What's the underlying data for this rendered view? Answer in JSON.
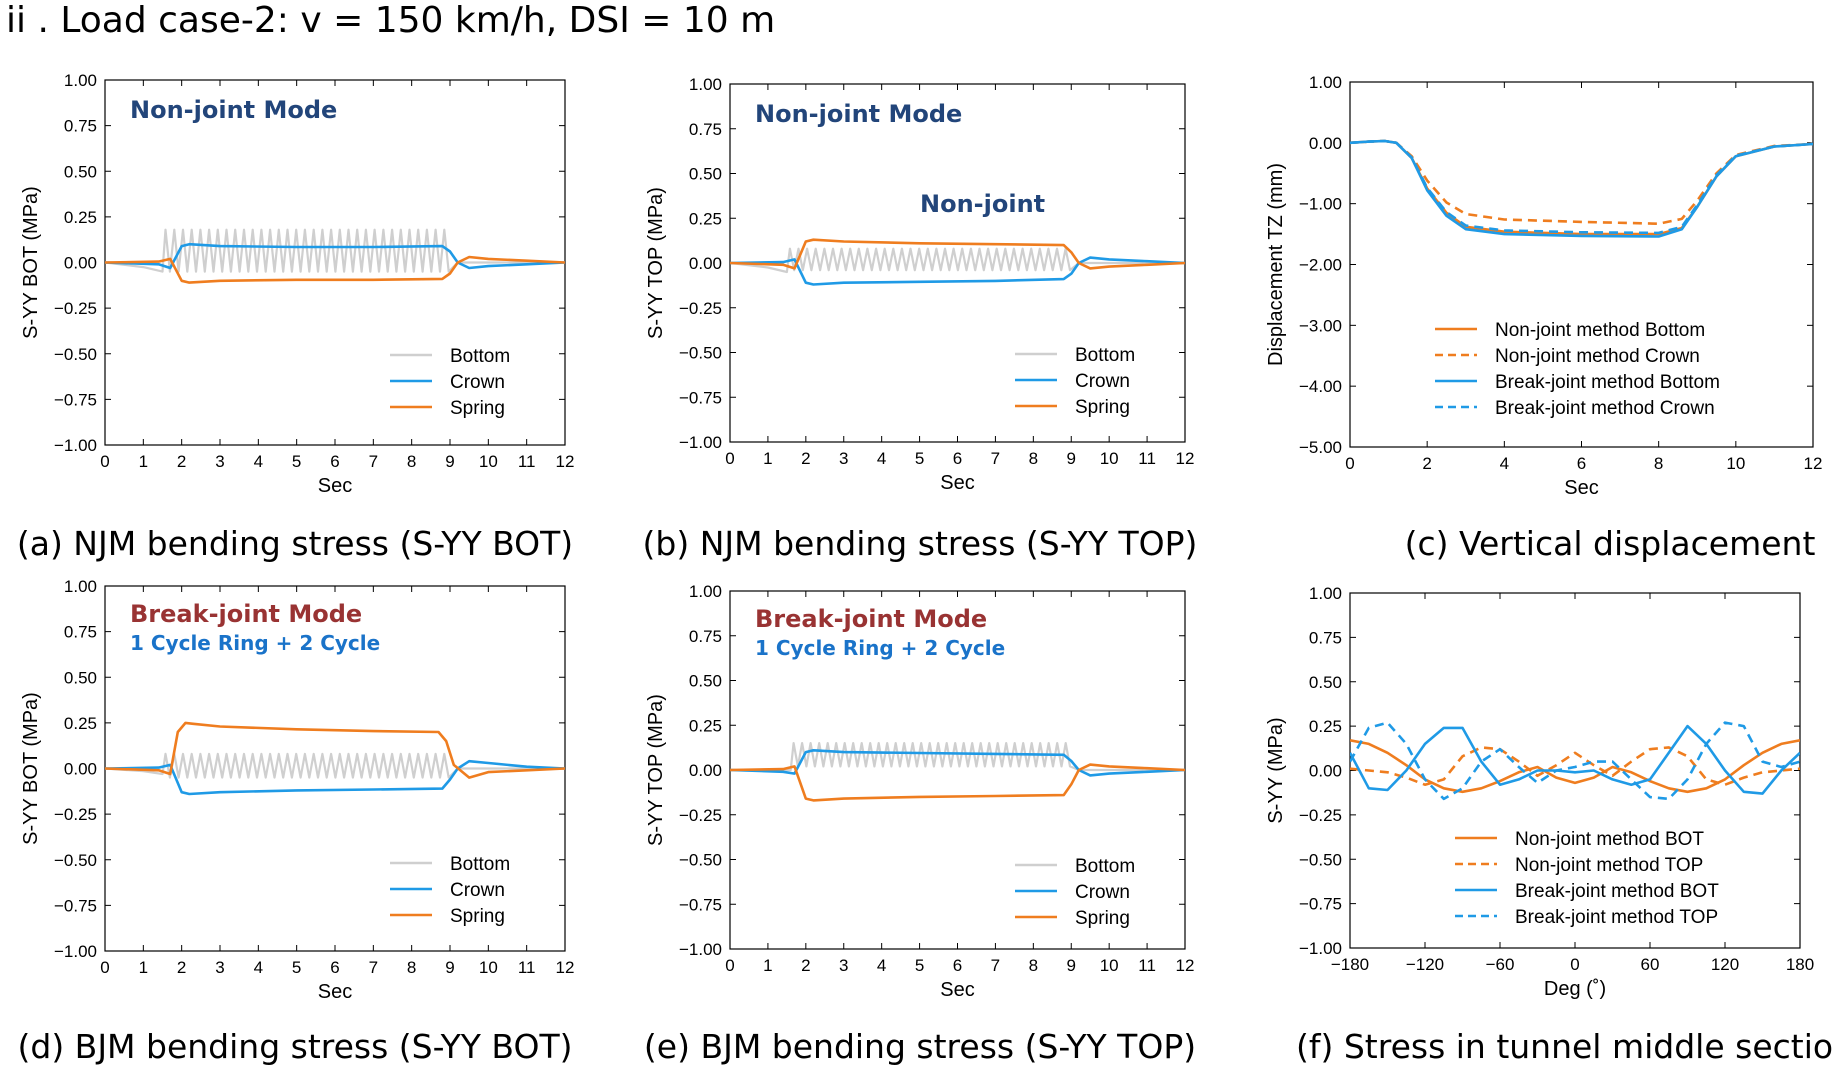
{
  "page": {
    "title": "ii . Load case-2: v = 150 km/h, DSI = 10 m"
  },
  "colors": {
    "bottom": "#cfcfcf",
    "crown": "#1f9ae6",
    "spring": "#ef7d1f",
    "non_joint": "#ef7d1f",
    "break_joint": "#1f9ae6",
    "anno_navy": "#22457a",
    "anno_red": "#993333",
    "anno_blue": "#1a73c9"
  },
  "chart_data": [
    {
      "id": "a",
      "type": "line",
      "caption": "(a) NJM bending stress (S-YY BOT)",
      "xlabel": "Sec",
      "ylabel": "S-YY  BOT (MPa)",
      "xlim": [
        0,
        12
      ],
      "ylim": [
        -1.0,
        1.0
      ],
      "xticks": [
        "0",
        "1",
        "2",
        "3",
        "4",
        "5",
        "6",
        "7",
        "8",
        "9",
        "10",
        "11",
        "12"
      ],
      "yticks": [
        "1.00",
        "0.75",
        "0.50",
        "0.25",
        "0.00",
        "−0.25",
        "−0.50",
        "−0.75",
        "−1.00"
      ],
      "annotations": [
        {
          "text": "Non-joint Mode",
          "color": "anno_navy"
        }
      ],
      "legend": {
        "position": "lower-right",
        "entries": [
          "Bottom",
          "Crown",
          "Spring"
        ]
      },
      "series": [
        {
          "name": "Bottom",
          "color": "bottom",
          "style": "solid",
          "kind": "oscillating",
          "start": 1.5,
          "end": 9.0,
          "cycles": 33,
          "high": 0.18,
          "low": -0.05,
          "pre_dip": -0.05,
          "post": 0.0
        },
        {
          "name": "Crown",
          "color": "crown",
          "style": "solid",
          "x": [
            0,
            1.4,
            1.7,
            2.0,
            2.2,
            3,
            5,
            7,
            8.8,
            9.0,
            9.2,
            9.5,
            10,
            11,
            12
          ],
          "y": [
            0,
            -0.01,
            -0.03,
            0.09,
            0.1,
            0.09,
            0.085,
            0.085,
            0.09,
            0.06,
            0.0,
            -0.03,
            -0.02,
            -0.01,
            0
          ]
        },
        {
          "name": "Spring",
          "color": "spring",
          "style": "solid",
          "x": [
            0,
            1.4,
            1.7,
            2.0,
            2.2,
            3,
            5,
            7,
            8.8,
            9.0,
            9.2,
            9.5,
            10,
            11,
            12
          ],
          "y": [
            0,
            0.005,
            0.02,
            -0.1,
            -0.11,
            -0.1,
            -0.095,
            -0.095,
            -0.09,
            -0.06,
            0.0,
            0.03,
            0.02,
            0.01,
            0
          ]
        }
      ]
    },
    {
      "id": "b",
      "type": "line",
      "caption": "(b) NJM bending stress (S-YY TOP)",
      "xlabel": "Sec",
      "ylabel": "S-YY  TOP (MPa)",
      "xlim": [
        0,
        12
      ],
      "ylim": [
        -1.0,
        1.0
      ],
      "xticks": [
        "0",
        "1",
        "2",
        "3",
        "4",
        "5",
        "6",
        "7",
        "8",
        "9",
        "10",
        "11",
        "12"
      ],
      "yticks": [
        "1.00",
        "0.75",
        "0.50",
        "0.25",
        "0.00",
        "−0.25",
        "−0.50",
        "−0.75",
        "−1.00"
      ],
      "annotations": [
        {
          "text": "Non-joint Mode",
          "color": "anno_navy"
        },
        {
          "text": "Non-joint",
          "color": "anno_navy"
        }
      ],
      "legend": {
        "position": "lower-right",
        "entries": [
          "Bottom",
          "Crown",
          "Spring"
        ]
      },
      "series": [
        {
          "name": "Bottom",
          "color": "bottom",
          "style": "solid",
          "kind": "oscillating",
          "start": 1.5,
          "end": 9.0,
          "cycles": 33,
          "high": 0.08,
          "low": -0.04,
          "pre_dip": -0.05,
          "post": 0.0
        },
        {
          "name": "Crown",
          "color": "crown",
          "style": "solid",
          "x": [
            0,
            1.4,
            1.7,
            2.0,
            2.2,
            3,
            5,
            7,
            8.8,
            9.0,
            9.2,
            9.5,
            10,
            11,
            12
          ],
          "y": [
            0,
            0.005,
            0.02,
            -0.11,
            -0.12,
            -0.11,
            -0.105,
            -0.1,
            -0.09,
            -0.06,
            0.0,
            0.03,
            0.02,
            0.01,
            0
          ]
        },
        {
          "name": "Spring",
          "color": "spring",
          "style": "solid",
          "x": [
            0,
            1.4,
            1.7,
            2.0,
            2.2,
            3,
            5,
            7,
            8.8,
            9.0,
            9.2,
            9.5,
            10,
            11,
            12
          ],
          "y": [
            0,
            -0.01,
            -0.03,
            0.12,
            0.13,
            0.12,
            0.11,
            0.105,
            0.1,
            0.06,
            0.0,
            -0.03,
            -0.02,
            -0.01,
            0
          ]
        }
      ]
    },
    {
      "id": "c",
      "type": "line",
      "caption": "(c) Vertical displacement",
      "xlabel": "Sec",
      "ylabel": "Displacement  TZ (mm)",
      "xlim": [
        0,
        12
      ],
      "ylim": [
        -5.0,
        1.0
      ],
      "xticks": [
        "0",
        "2",
        "4",
        "6",
        "8",
        "10",
        "12"
      ],
      "yticks": [
        "1.00",
        "0.00",
        "−1.00",
        "−2.00",
        "−3.00",
        "−4.00",
        "−5.00"
      ],
      "legend": {
        "position": "lower-right",
        "entries": [
          "Non-joint method  Bottom",
          "Non-joint method  Crown",
          "Break-joint method  Bottom",
          "Break-joint method  Crown"
        ]
      },
      "series": [
        {
          "name": "Non-joint method  Bottom",
          "color": "non_joint",
          "style": "solid",
          "x": [
            0,
            0.5,
            0.9,
            1.2,
            1.6,
            2.0,
            2.5,
            3,
            4,
            6,
            8,
            8.6,
            9,
            9.5,
            10,
            11,
            12
          ],
          "y": [
            0,
            0.02,
            0.03,
            0,
            -0.25,
            -0.75,
            -1.15,
            -1.38,
            -1.46,
            -1.5,
            -1.5,
            -1.4,
            -1.05,
            -0.55,
            -0.22,
            -0.06,
            -0.02
          ]
        },
        {
          "name": "Non-joint method  Crown",
          "color": "non_joint",
          "style": "dashed",
          "x": [
            0,
            0.5,
            0.9,
            1.2,
            1.6,
            2.0,
            2.5,
            3,
            4,
            6,
            8,
            8.6,
            9,
            9.5,
            10,
            11,
            12
          ],
          "y": [
            0,
            0.02,
            0.03,
            0,
            -0.22,
            -0.62,
            -0.98,
            -1.17,
            -1.26,
            -1.3,
            -1.33,
            -1.25,
            -0.95,
            -0.5,
            -0.2,
            -0.05,
            -0.02
          ]
        },
        {
          "name": "Break-joint method  Bottom",
          "color": "break_joint",
          "style": "solid",
          "x": [
            0,
            0.5,
            0.9,
            1.2,
            1.6,
            2.0,
            2.5,
            3,
            4,
            6,
            8,
            8.6,
            9,
            9.5,
            10,
            11,
            12
          ],
          "y": [
            0,
            0.02,
            0.03,
            0,
            -0.25,
            -0.78,
            -1.2,
            -1.42,
            -1.5,
            -1.53,
            -1.54,
            -1.42,
            -1.05,
            -0.55,
            -0.22,
            -0.06,
            -0.02
          ]
        },
        {
          "name": "Break-joint method  Crown",
          "color": "break_joint",
          "style": "dashed",
          "x": [
            0,
            0.5,
            0.9,
            1.2,
            1.6,
            2.0,
            2.5,
            3,
            4,
            6,
            8,
            8.6,
            9,
            9.5,
            10,
            11,
            12
          ],
          "y": [
            0,
            0.02,
            0.03,
            0,
            -0.24,
            -0.74,
            -1.14,
            -1.36,
            -1.44,
            -1.47,
            -1.48,
            -1.38,
            -1.02,
            -0.53,
            -0.21,
            -0.06,
            -0.02
          ]
        }
      ]
    },
    {
      "id": "d",
      "type": "line",
      "caption": "(d) BJM bending stress (S-YY BOT)",
      "xlabel": "Sec",
      "ylabel": "S-YY  BOT (MPa)",
      "xlim": [
        0,
        12
      ],
      "ylim": [
        -1.0,
        1.0
      ],
      "xticks": [
        "0",
        "1",
        "2",
        "3",
        "4",
        "5",
        "6",
        "7",
        "8",
        "9",
        "10",
        "11",
        "12"
      ],
      "yticks": [
        "1.00",
        "0.75",
        "0.50",
        "0.25",
        "0.00",
        "−0.25",
        "−0.50",
        "−0.75",
        "−1.00"
      ],
      "annotations": [
        {
          "text": "Break-joint Mode",
          "color": "anno_red"
        },
        {
          "text": "1 Cycle Ring + 2 Cycle",
          "color": "anno_blue"
        }
      ],
      "legend": {
        "position": "lower-right",
        "entries": [
          "Bottom",
          "Crown",
          "Spring"
        ]
      },
      "series": [
        {
          "name": "Bottom",
          "color": "bottom",
          "style": "solid",
          "kind": "oscillating",
          "start": 1.5,
          "end": 9.0,
          "cycles": 33,
          "high": 0.08,
          "low": -0.05,
          "pre_dip": -0.03,
          "post": 0.0
        },
        {
          "name": "Crown",
          "color": "crown",
          "style": "solid",
          "x": [
            0,
            1.4,
            1.7,
            2.0,
            2.2,
            3,
            5,
            7,
            8.8,
            9.0,
            9.2,
            9.5,
            10,
            11,
            12
          ],
          "y": [
            0,
            0.005,
            0.02,
            -0.13,
            -0.14,
            -0.13,
            -0.12,
            -0.115,
            -0.11,
            -0.06,
            0.0,
            0.04,
            0.03,
            0.01,
            0
          ]
        },
        {
          "name": "Spring",
          "color": "spring",
          "style": "solid",
          "x": [
            0,
            1.4,
            1.7,
            1.9,
            2.1,
            2.3,
            3,
            5,
            7,
            8.7,
            8.9,
            9.1,
            9.5,
            10,
            11,
            12
          ],
          "y": [
            0,
            -0.01,
            -0.03,
            0.2,
            0.25,
            0.245,
            0.23,
            0.215,
            0.205,
            0.2,
            0.15,
            0.02,
            -0.05,
            -0.02,
            -0.01,
            0
          ]
        }
      ]
    },
    {
      "id": "e",
      "type": "line",
      "caption": "(e) BJM bending stress (S-YY TOP)",
      "xlabel": "Sec",
      "ylabel": "S-YY  TOP (MPa)",
      "xlim": [
        0,
        12
      ],
      "ylim": [
        -1.0,
        1.0
      ],
      "xticks": [
        "0",
        "1",
        "2",
        "3",
        "4",
        "5",
        "6",
        "7",
        "8",
        "9",
        "10",
        "11",
        "12"
      ],
      "yticks": [
        "1.00",
        "0.75",
        "0.50",
        "0.25",
        "0.00",
        "−0.25",
        "−0.50",
        "−0.75",
        "−1.00"
      ],
      "annotations": [
        {
          "text": "Break-joint Mode",
          "color": "anno_red"
        },
        {
          "text": "1 Cycle Ring + 2 Cycle",
          "color": "anno_blue"
        }
      ],
      "legend": {
        "position": "lower-right",
        "entries": [
          "Bottom",
          "Crown",
          "Spring"
        ]
      },
      "series": [
        {
          "name": "Bottom",
          "color": "bottom",
          "style": "solid",
          "kind": "oscillating",
          "start": 1.6,
          "end": 9.0,
          "cycles": 33,
          "high": 0.15,
          "low": 0.02,
          "pre_dip": 0.0,
          "post": 0.0
        },
        {
          "name": "Crown",
          "color": "crown",
          "style": "solid",
          "x": [
            0,
            1.4,
            1.7,
            2.0,
            2.2,
            3,
            5,
            7,
            8.8,
            9.0,
            9.2,
            9.5,
            10,
            11,
            12
          ],
          "y": [
            0,
            -0.01,
            -0.02,
            0.1,
            0.11,
            0.1,
            0.095,
            0.09,
            0.085,
            0.05,
            0.0,
            -0.03,
            -0.02,
            -0.01,
            0
          ]
        },
        {
          "name": "Spring",
          "color": "spring",
          "style": "solid",
          "x": [
            0,
            1.4,
            1.7,
            2.0,
            2.2,
            3,
            5,
            7,
            8.8,
            9.0,
            9.2,
            9.5,
            10,
            11,
            12
          ],
          "y": [
            0,
            0.005,
            0.02,
            -0.16,
            -0.17,
            -0.16,
            -0.15,
            -0.145,
            -0.14,
            -0.08,
            0.0,
            0.03,
            0.02,
            0.01,
            0
          ]
        }
      ]
    },
    {
      "id": "f",
      "type": "line",
      "caption": "(f) Stress in tunnel middle section",
      "xlabel": "Deg (˚)",
      "ylabel": "S-YY (MPa)",
      "xlim": [
        -180,
        180
      ],
      "ylim": [
        -1.0,
        1.0
      ],
      "xticks": [
        "−180",
        "−120",
        "−60",
        "0",
        "60",
        "120",
        "180"
      ],
      "yticks": [
        "1.00",
        "0.75",
        "0.50",
        "0.25",
        "0.00",
        "−0.25",
        "−0.50",
        "−0.75",
        "−1.00"
      ],
      "legend": {
        "position": "lower-right",
        "entries": [
          "Non-joint method       BOT",
          "Non-joint method       TOP",
          "Break-joint method  BOT",
          "Break-joint method  TOP"
        ]
      },
      "series": [
        {
          "name": "Non-joint method BOT",
          "color": "non_joint",
          "style": "solid",
          "x": [
            -180,
            -165,
            -150,
            -135,
            -120,
            -105,
            -90,
            -75,
            -60,
            -45,
            -30,
            -15,
            0,
            15,
            30,
            45,
            60,
            75,
            90,
            105,
            120,
            135,
            150,
            165,
            180
          ],
          "y": [
            0.17,
            0.15,
            0.1,
            0.03,
            -0.05,
            -0.1,
            -0.12,
            -0.1,
            -0.06,
            -0.01,
            0.02,
            -0.04,
            -0.07,
            -0.04,
            0.02,
            -0.01,
            -0.06,
            -0.1,
            -0.12,
            -0.1,
            -0.05,
            0.03,
            0.1,
            0.15,
            0.17
          ]
        },
        {
          "name": "Non-joint method TOP",
          "color": "non_joint",
          "style": "dashed",
          "x": [
            -180,
            -165,
            -150,
            -135,
            -120,
            -105,
            -90,
            -75,
            -60,
            -45,
            -30,
            -15,
            0,
            15,
            30,
            45,
            60,
            75,
            90,
            105,
            120,
            135,
            150,
            165,
            180
          ],
          "y": [
            0.01,
            0.0,
            -0.01,
            -0.04,
            -0.08,
            -0.05,
            0.08,
            0.13,
            0.12,
            0.05,
            -0.03,
            0.03,
            0.1,
            0.03,
            -0.03,
            0.05,
            0.12,
            0.13,
            0.08,
            -0.05,
            -0.08,
            -0.04,
            -0.01,
            0.0,
            0.01
          ]
        },
        {
          "name": "Break-joint method BOT",
          "color": "break_joint",
          "style": "solid",
          "x": [
            -180,
            -165,
            -150,
            -135,
            -120,
            -105,
            -90,
            -75,
            -60,
            -45,
            -30,
            -15,
            0,
            15,
            30,
            45,
            60,
            75,
            90,
            105,
            120,
            135,
            150,
            165,
            180
          ],
          "y": [
            0.1,
            -0.1,
            -0.11,
            0.0,
            0.15,
            0.24,
            0.24,
            0.05,
            -0.08,
            -0.05,
            0.0,
            0.0,
            -0.01,
            0.0,
            -0.05,
            -0.08,
            -0.05,
            0.1,
            0.25,
            0.15,
            0.0,
            -0.12,
            -0.13,
            0.0,
            0.1
          ]
        },
        {
          "name": "Break-joint method TOP",
          "color": "break_joint",
          "style": "dashed",
          "x": [
            -180,
            -165,
            -150,
            -135,
            -120,
            -105,
            -90,
            -75,
            -60,
            -45,
            -30,
            -15,
            0,
            15,
            30,
            45,
            60,
            75,
            90,
            105,
            120,
            135,
            150,
            165,
            180
          ],
          "y": [
            0.05,
            0.24,
            0.27,
            0.15,
            -0.05,
            -0.16,
            -0.1,
            0.05,
            0.12,
            0.02,
            -0.07,
            0.0,
            0.02,
            0.05,
            0.05,
            -0.05,
            -0.15,
            -0.16,
            -0.05,
            0.15,
            0.27,
            0.25,
            0.05,
            0.02,
            0.05
          ]
        }
      ]
    }
  ]
}
